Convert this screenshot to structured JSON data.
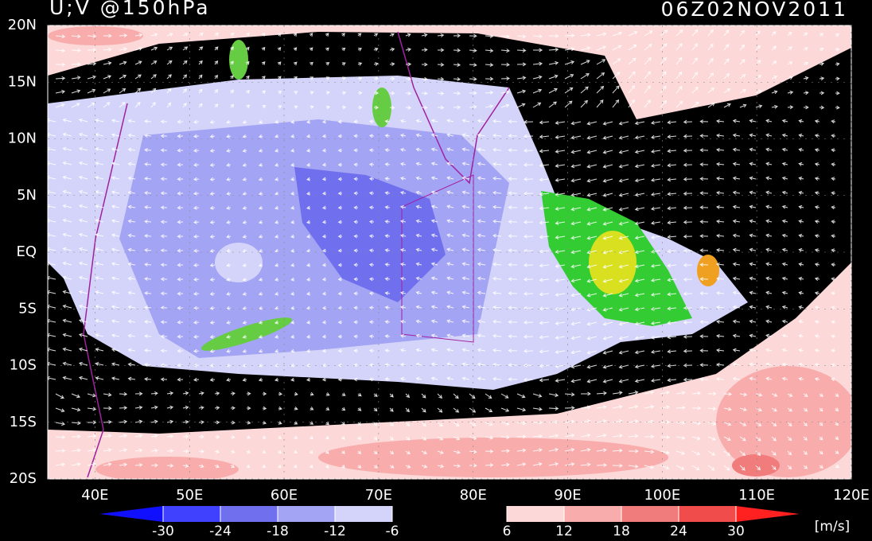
{
  "map": {
    "title": "U;V @150hPa",
    "time": "06Z02NOV2011",
    "units": "[m/s]",
    "lonlim": [
      35,
      120
    ],
    "latlim": [
      -20,
      20
    ],
    "lon_ticks": [
      {
        "value": 40,
        "label": "40E"
      },
      {
        "value": 50,
        "label": "50E"
      },
      {
        "value": 60,
        "label": "60E"
      },
      {
        "value": 70,
        "label": "70E"
      },
      {
        "value": 80,
        "label": "80E"
      },
      {
        "value": 90,
        "label": "90E"
      },
      {
        "value": 100,
        "label": "100E"
      },
      {
        "value": 110,
        "label": "110E"
      },
      {
        "value": 120,
        "label": "120E"
      }
    ],
    "lat_ticks": [
      {
        "value": 20,
        "label": "20N"
      },
      {
        "value": 15,
        "label": "15N"
      },
      {
        "value": 10,
        "label": "10N"
      },
      {
        "value": 5,
        "label": "5N"
      },
      {
        "value": 0,
        "label": "EQ"
      },
      {
        "value": -5,
        "label": "5S"
      },
      {
        "value": -10,
        "label": "10S"
      },
      {
        "value": -15,
        "label": "15S"
      },
      {
        "value": -20,
        "label": "20S"
      }
    ],
    "colorbar": {
      "levels": [
        -30,
        -24,
        -18,
        -12,
        -6,
        6,
        12,
        18,
        24,
        30
      ],
      "colors": [
        "#1010ff",
        "#4040ff",
        "#7070ee",
        "#a4a4f4",
        "#d4d4fa",
        "#000000",
        "#fcd8d8",
        "#f8acac",
        "#f07c7c",
        "#f04c4c",
        "#ff2020"
      ]
    }
  }
}
